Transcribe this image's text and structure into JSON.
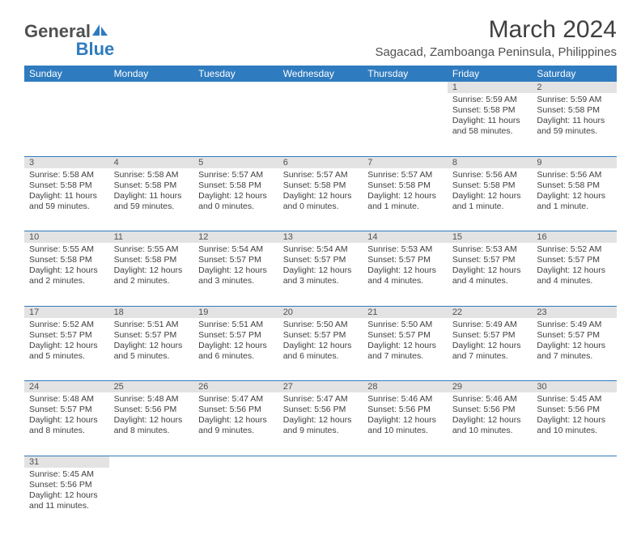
{
  "logo": {
    "text_a": "General",
    "text_b": "Blue",
    "color_a": "#505050",
    "color_b": "#2f7bbf"
  },
  "title": "March 2024",
  "location": "Sagacad, Zamboanga Peninsula, Philippines",
  "colors": {
    "header_bg": "#2f7bbf",
    "header_text": "#ffffff",
    "daynum_bg": "#e3e3e3",
    "text": "#404040",
    "border": "#2f7bbf"
  },
  "typography": {
    "title_fontsize": 30,
    "location_fontsize": 15,
    "dayheader_fontsize": 12,
    "cell_fontsize": 10.5
  },
  "day_headers": [
    "Sunday",
    "Monday",
    "Tuesday",
    "Wednesday",
    "Thursday",
    "Friday",
    "Saturday"
  ],
  "weeks": [
    [
      null,
      null,
      null,
      null,
      null,
      {
        "n": "1",
        "sr": "Sunrise: 5:59 AM",
        "ss": "Sunset: 5:58 PM",
        "dl1": "Daylight: 11 hours",
        "dl2": "and 58 minutes."
      },
      {
        "n": "2",
        "sr": "Sunrise: 5:59 AM",
        "ss": "Sunset: 5:58 PM",
        "dl1": "Daylight: 11 hours",
        "dl2": "and 59 minutes."
      }
    ],
    [
      {
        "n": "3",
        "sr": "Sunrise: 5:58 AM",
        "ss": "Sunset: 5:58 PM",
        "dl1": "Daylight: 11 hours",
        "dl2": "and 59 minutes."
      },
      {
        "n": "4",
        "sr": "Sunrise: 5:58 AM",
        "ss": "Sunset: 5:58 PM",
        "dl1": "Daylight: 11 hours",
        "dl2": "and 59 minutes."
      },
      {
        "n": "5",
        "sr": "Sunrise: 5:57 AM",
        "ss": "Sunset: 5:58 PM",
        "dl1": "Daylight: 12 hours",
        "dl2": "and 0 minutes."
      },
      {
        "n": "6",
        "sr": "Sunrise: 5:57 AM",
        "ss": "Sunset: 5:58 PM",
        "dl1": "Daylight: 12 hours",
        "dl2": "and 0 minutes."
      },
      {
        "n": "7",
        "sr": "Sunrise: 5:57 AM",
        "ss": "Sunset: 5:58 PM",
        "dl1": "Daylight: 12 hours",
        "dl2": "and 1 minute."
      },
      {
        "n": "8",
        "sr": "Sunrise: 5:56 AM",
        "ss": "Sunset: 5:58 PM",
        "dl1": "Daylight: 12 hours",
        "dl2": "and 1 minute."
      },
      {
        "n": "9",
        "sr": "Sunrise: 5:56 AM",
        "ss": "Sunset: 5:58 PM",
        "dl1": "Daylight: 12 hours",
        "dl2": "and 1 minute."
      }
    ],
    [
      {
        "n": "10",
        "sr": "Sunrise: 5:55 AM",
        "ss": "Sunset: 5:58 PM",
        "dl1": "Daylight: 12 hours",
        "dl2": "and 2 minutes."
      },
      {
        "n": "11",
        "sr": "Sunrise: 5:55 AM",
        "ss": "Sunset: 5:58 PM",
        "dl1": "Daylight: 12 hours",
        "dl2": "and 2 minutes."
      },
      {
        "n": "12",
        "sr": "Sunrise: 5:54 AM",
        "ss": "Sunset: 5:57 PM",
        "dl1": "Daylight: 12 hours",
        "dl2": "and 3 minutes."
      },
      {
        "n": "13",
        "sr": "Sunrise: 5:54 AM",
        "ss": "Sunset: 5:57 PM",
        "dl1": "Daylight: 12 hours",
        "dl2": "and 3 minutes."
      },
      {
        "n": "14",
        "sr": "Sunrise: 5:53 AM",
        "ss": "Sunset: 5:57 PM",
        "dl1": "Daylight: 12 hours",
        "dl2": "and 4 minutes."
      },
      {
        "n": "15",
        "sr": "Sunrise: 5:53 AM",
        "ss": "Sunset: 5:57 PM",
        "dl1": "Daylight: 12 hours",
        "dl2": "and 4 minutes."
      },
      {
        "n": "16",
        "sr": "Sunrise: 5:52 AM",
        "ss": "Sunset: 5:57 PM",
        "dl1": "Daylight: 12 hours",
        "dl2": "and 4 minutes."
      }
    ],
    [
      {
        "n": "17",
        "sr": "Sunrise: 5:52 AM",
        "ss": "Sunset: 5:57 PM",
        "dl1": "Daylight: 12 hours",
        "dl2": "and 5 minutes."
      },
      {
        "n": "18",
        "sr": "Sunrise: 5:51 AM",
        "ss": "Sunset: 5:57 PM",
        "dl1": "Daylight: 12 hours",
        "dl2": "and 5 minutes."
      },
      {
        "n": "19",
        "sr": "Sunrise: 5:51 AM",
        "ss": "Sunset: 5:57 PM",
        "dl1": "Daylight: 12 hours",
        "dl2": "and 6 minutes."
      },
      {
        "n": "20",
        "sr": "Sunrise: 5:50 AM",
        "ss": "Sunset: 5:57 PM",
        "dl1": "Daylight: 12 hours",
        "dl2": "and 6 minutes."
      },
      {
        "n": "21",
        "sr": "Sunrise: 5:50 AM",
        "ss": "Sunset: 5:57 PM",
        "dl1": "Daylight: 12 hours",
        "dl2": "and 7 minutes."
      },
      {
        "n": "22",
        "sr": "Sunrise: 5:49 AM",
        "ss": "Sunset: 5:57 PM",
        "dl1": "Daylight: 12 hours",
        "dl2": "and 7 minutes."
      },
      {
        "n": "23",
        "sr": "Sunrise: 5:49 AM",
        "ss": "Sunset: 5:57 PM",
        "dl1": "Daylight: 12 hours",
        "dl2": "and 7 minutes."
      }
    ],
    [
      {
        "n": "24",
        "sr": "Sunrise: 5:48 AM",
        "ss": "Sunset: 5:57 PM",
        "dl1": "Daylight: 12 hours",
        "dl2": "and 8 minutes."
      },
      {
        "n": "25",
        "sr": "Sunrise: 5:48 AM",
        "ss": "Sunset: 5:56 PM",
        "dl1": "Daylight: 12 hours",
        "dl2": "and 8 minutes."
      },
      {
        "n": "26",
        "sr": "Sunrise: 5:47 AM",
        "ss": "Sunset: 5:56 PM",
        "dl1": "Daylight: 12 hours",
        "dl2": "and 9 minutes."
      },
      {
        "n": "27",
        "sr": "Sunrise: 5:47 AM",
        "ss": "Sunset: 5:56 PM",
        "dl1": "Daylight: 12 hours",
        "dl2": "and 9 minutes."
      },
      {
        "n": "28",
        "sr": "Sunrise: 5:46 AM",
        "ss": "Sunset: 5:56 PM",
        "dl1": "Daylight: 12 hours",
        "dl2": "and 10 minutes."
      },
      {
        "n": "29",
        "sr": "Sunrise: 5:46 AM",
        "ss": "Sunset: 5:56 PM",
        "dl1": "Daylight: 12 hours",
        "dl2": "and 10 minutes."
      },
      {
        "n": "30",
        "sr": "Sunrise: 5:45 AM",
        "ss": "Sunset: 5:56 PM",
        "dl1": "Daylight: 12 hours",
        "dl2": "and 10 minutes."
      }
    ],
    [
      {
        "n": "31",
        "sr": "Sunrise: 5:45 AM",
        "ss": "Sunset: 5:56 PM",
        "dl1": "Daylight: 12 hours",
        "dl2": "and 11 minutes."
      },
      null,
      null,
      null,
      null,
      null,
      null
    ]
  ]
}
